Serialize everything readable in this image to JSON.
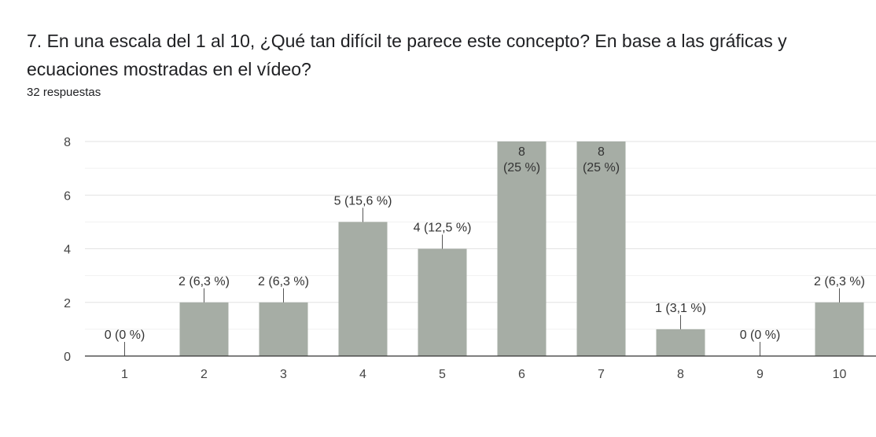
{
  "header": {
    "question": "7. En una escala del 1 al 10, ¿Qué tan difícil te parece este concepto? En base a las gráficas y ecuaciones mostradas en el vídeo?",
    "responses": "32 respuestas"
  },
  "chart_data": {
    "type": "bar",
    "title": "7. En una escala del 1 al 10, ¿Qué tan difícil te parece este concepto? En base a las gráficas y ecuaciones mostradas en el vídeo?",
    "categories": [
      "1",
      "2",
      "3",
      "4",
      "5",
      "6",
      "7",
      "8",
      "9",
      "10"
    ],
    "values": [
      0,
      2,
      2,
      5,
      4,
      8,
      8,
      1,
      0,
      2
    ],
    "labels": [
      "0 (0 %)",
      "2 (6,3 %)",
      "2 (6,3 %)",
      "5 (15,6 %)",
      "4 (12,5 %)",
      "8\n(25 %)",
      "8\n(25 %)",
      "1 (3,1 %)",
      "0 (0 %)",
      "2 (6,3 %)"
    ],
    "yticks": [
      "0",
      "2",
      "4",
      "6",
      "8"
    ],
    "ylim": [
      0,
      8
    ],
    "xlabel": "",
    "ylabel": "",
    "grid": true,
    "bar_color": "#a6ada5"
  }
}
